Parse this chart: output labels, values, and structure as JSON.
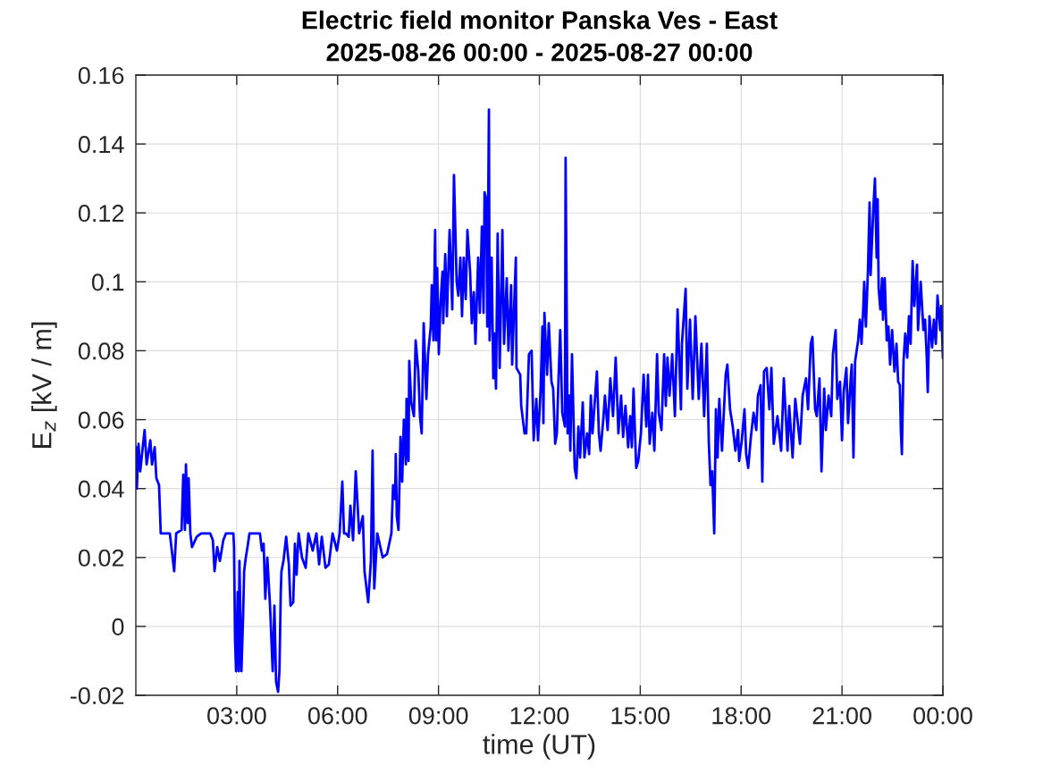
{
  "chart_data": {
    "type": "line",
    "title": "Electric field monitor Panska Ves - East",
    "subtitle": "2025-08-26 00:00 - 2025-08-27 00:00",
    "xlabel": "time (UT)",
    "ylabel": "E$_{z}$ [kV / m]",
    "x": [
      0.0,
      0.03,
      0.08,
      0.13,
      0.26,
      0.32,
      0.43,
      0.48,
      0.56,
      0.61,
      0.69,
      0.74,
      1.01,
      1.14,
      1.2,
      1.36,
      1.41,
      1.46,
      1.49,
      1.54,
      1.57,
      1.62,
      1.67,
      1.81,
      1.94,
      2.21,
      2.29,
      2.34,
      2.42,
      2.5,
      2.6,
      2.68,
      2.9,
      2.92,
      2.95,
      2.98,
      3.03,
      3.06,
      3.08,
      3.14,
      3.19,
      3.22,
      3.27,
      3.32,
      3.38,
      3.69,
      3.75,
      3.8,
      3.85,
      3.91,
      3.99,
      4.07,
      4.12,
      4.17,
      4.23,
      4.27,
      4.31,
      4.33,
      4.39,
      4.47,
      4.55,
      4.6,
      4.68,
      4.73,
      4.78,
      4.84,
      4.94,
      5.05,
      5.13,
      5.26,
      5.37,
      5.45,
      5.53,
      5.64,
      5.74,
      5.85,
      5.98,
      6.06,
      6.14,
      6.19,
      6.25,
      6.33,
      6.38,
      6.46,
      6.54,
      6.64,
      6.75,
      6.8,
      6.91,
      6.99,
      7.04,
      7.09,
      7.18,
      7.34,
      7.47,
      7.6,
      7.65,
      7.71,
      7.73,
      7.76,
      7.81,
      7.87,
      7.92,
      7.97,
      8.03,
      8.05,
      8.11,
      8.13,
      8.19,
      8.27,
      8.32,
      8.4,
      8.45,
      8.5,
      8.56,
      8.64,
      8.69,
      8.77,
      8.8,
      8.85,
      8.9,
      8.93,
      8.96,
      9.01,
      9.06,
      9.12,
      9.14,
      9.2,
      9.25,
      9.33,
      9.41,
      9.46,
      9.54,
      9.59,
      9.65,
      9.7,
      9.75,
      9.81,
      9.86,
      9.94,
      9.99,
      10.05,
      10.1,
      10.18,
      10.23,
      10.29,
      10.34,
      10.37,
      10.42,
      10.45,
      10.5,
      10.52,
      10.58,
      10.63,
      10.66,
      10.71,
      10.76,
      10.82,
      10.9,
      10.95,
      11.03,
      11.08,
      11.16,
      11.19,
      11.3,
      11.32,
      11.43,
      11.46,
      11.56,
      11.61,
      11.69,
      11.77,
      11.83,
      11.91,
      11.96,
      12.04,
      12.09,
      12.12,
      12.15,
      12.23,
      12.28,
      12.36,
      12.41,
      12.47,
      12.52,
      12.57,
      12.62,
      12.68,
      12.76,
      12.78,
      12.84,
      12.89,
      12.92,
      12.97,
      13.05,
      13.1,
      13.16,
      13.21,
      13.29,
      13.34,
      13.42,
      13.48,
      13.53,
      13.58,
      13.66,
      13.71,
      13.77,
      13.82,
      13.9,
      13.95,
      14.03,
      14.11,
      14.19,
      14.27,
      14.35,
      14.43,
      14.49,
      14.56,
      14.64,
      14.7,
      14.75,
      14.8,
      14.88,
      14.94,
      15.02,
      15.1,
      15.18,
      15.23,
      15.28,
      15.36,
      15.42,
      15.5,
      15.55,
      15.63,
      15.71,
      15.76,
      15.81,
      15.87,
      15.95,
      16.03,
      16.11,
      16.21,
      16.24,
      16.35,
      16.4,
      16.48,
      16.56,
      16.64,
      16.74,
      16.82,
      16.9,
      16.98,
      17.04,
      17.09,
      17.14,
      17.2,
      17.25,
      17.3,
      17.35,
      17.43,
      17.54,
      17.59,
      17.67,
      17.75,
      17.83,
      17.91,
      17.94,
      18.02,
      18.1,
      18.15,
      18.21,
      18.29,
      18.37,
      18.45,
      18.5,
      18.58,
      18.63,
      18.68,
      18.76,
      18.84,
      18.9,
      18.97,
      19.08,
      19.19,
      19.27,
      19.38,
      19.43,
      19.53,
      19.61,
      19.75,
      19.83,
      19.93,
      19.99,
      20.07,
      20.12,
      20.2,
      20.25,
      20.33,
      20.39,
      20.47,
      20.52,
      20.6,
      20.68,
      20.73,
      20.81,
      20.86,
      20.94,
      21.0,
      21.05,
      21.13,
      21.18,
      21.26,
      21.29,
      21.34,
      21.39,
      21.48,
      21.53,
      21.58,
      21.63,
      21.66,
      21.71,
      21.77,
      21.82,
      21.85,
      21.93,
      21.98,
      22.03,
      22.06,
      22.09,
      22.14,
      22.19,
      22.22,
      22.27,
      22.33,
      22.38,
      22.43,
      22.49,
      22.56,
      22.62,
      22.67,
      22.72,
      22.75,
      22.78,
      22.83,
      22.88,
      22.94,
      22.99,
      23.04,
      23.1,
      23.15,
      23.23,
      23.26,
      23.34,
      23.42,
      23.47,
      23.52,
      23.55,
      23.6,
      23.68,
      23.73,
      23.79,
      23.84,
      23.92,
      23.95,
      24.0
    ],
    "series": [
      {
        "color": "#0000ff",
        "values": [
          0.052,
          0.04,
          0.053,
          0.045,
          0.057,
          0.047,
          0.054,
          0.047,
          0.052,
          0.043,
          0.041,
          0.027,
          0.027,
          0.016,
          0.027,
          0.028,
          0.044,
          0.028,
          0.047,
          0.03,
          0.043,
          0.027,
          0.023,
          0.026,
          0.027,
          0.027,
          0.025,
          0.016,
          0.023,
          0.019,
          0.025,
          0.027,
          0.027,
          0.023,
          -0.004,
          -0.013,
          0.01,
          -0.013,
          0.019,
          -0.013,
          0.003,
          0.016,
          0.02,
          0.023,
          0.027,
          0.027,
          0.022,
          0.024,
          0.008,
          0.02,
          0.006,
          -0.013,
          0.006,
          -0.016,
          -0.019,
          -0.013,
          0.01,
          0.016,
          0.019,
          0.026,
          0.018,
          0.006,
          0.007,
          0.024,
          0.015,
          0.027,
          0.02,
          0.017,
          0.027,
          0.022,
          0.027,
          0.018,
          0.026,
          0.017,
          0.018,
          0.027,
          0.022,
          0.027,
          0.042,
          0.027,
          0.027,
          0.026,
          0.035,
          0.025,
          0.045,
          0.027,
          0.032,
          0.016,
          0.007,
          0.019,
          0.051,
          0.011,
          0.027,
          0.02,
          0.021,
          0.027,
          0.041,
          0.037,
          0.05,
          0.032,
          0.028,
          0.055,
          0.042,
          0.06,
          0.047,
          0.066,
          0.048,
          0.077,
          0.065,
          0.061,
          0.083,
          0.074,
          0.061,
          0.056,
          0.088,
          0.066,
          0.079,
          0.087,
          0.099,
          0.083,
          0.115,
          0.083,
          0.104,
          0.079,
          0.094,
          0.103,
          0.088,
          0.108,
          0.09,
          0.115,
          0.092,
          0.131,
          0.1,
          0.096,
          0.107,
          0.09,
          0.107,
          0.095,
          0.115,
          0.103,
          0.088,
          0.097,
          0.082,
          0.107,
          0.091,
          0.116,
          0.091,
          0.126,
          0.124,
          0.087,
          0.15,
          0.083,
          0.107,
          0.072,
          0.085,
          0.069,
          0.114,
          0.075,
          0.115,
          0.082,
          0.101,
          0.08,
          0.099,
          0.076,
          0.107,
          0.075,
          0.073,
          0.064,
          0.056,
          0.056,
          0.079,
          0.08,
          0.054,
          0.066,
          0.054,
          0.069,
          0.087,
          0.059,
          0.091,
          0.073,
          0.088,
          0.071,
          0.069,
          0.053,
          0.056,
          0.072,
          0.086,
          0.062,
          0.058,
          0.136,
          0.056,
          0.067,
          0.051,
          0.079,
          0.046,
          0.043,
          0.058,
          0.049,
          0.065,
          0.049,
          0.056,
          0.05,
          0.067,
          0.056,
          0.067,
          0.074,
          0.056,
          0.051,
          0.06,
          0.067,
          0.057,
          0.072,
          0.061,
          0.078,
          0.056,
          0.067,
          0.055,
          0.064,
          0.052,
          0.061,
          0.052,
          0.069,
          0.046,
          0.048,
          0.056,
          0.073,
          0.058,
          0.073,
          0.053,
          0.062,
          0.051,
          0.079,
          0.062,
          0.057,
          0.079,
          0.064,
          0.078,
          0.067,
          0.079,
          0.061,
          0.092,
          0.063,
          0.082,
          0.098,
          0.069,
          0.089,
          0.066,
          0.09,
          0.066,
          0.082,
          0.061,
          0.082,
          0.053,
          0.041,
          0.045,
          0.027,
          0.063,
          0.049,
          0.066,
          0.051,
          0.073,
          0.076,
          0.063,
          0.058,
          0.051,
          0.057,
          0.048,
          0.054,
          0.063,
          0.05,
          0.046,
          0.055,
          0.062,
          0.057,
          0.067,
          0.07,
          0.042,
          0.074,
          0.075,
          0.063,
          0.075,
          0.053,
          0.061,
          0.051,
          0.072,
          0.051,
          0.064,
          0.049,
          0.066,
          0.053,
          0.067,
          0.072,
          0.063,
          0.082,
          0.084,
          0.063,
          0.061,
          0.072,
          0.045,
          0.069,
          0.057,
          0.067,
          0.061,
          0.079,
          0.086,
          0.066,
          0.071,
          0.054,
          0.068,
          0.075,
          0.059,
          0.072,
          0.076,
          0.049,
          0.077,
          0.083,
          0.089,
          0.082,
          0.092,
          0.1,
          0.087,
          0.103,
          0.123,
          0.102,
          0.121,
          0.13,
          0.107,
          0.124,
          0.098,
          0.092,
          0.101,
          0.089,
          0.101,
          0.083,
          0.087,
          0.076,
          0.086,
          0.074,
          0.082,
          0.071,
          0.07,
          0.057,
          0.05,
          0.077,
          0.085,
          0.078,
          0.09,
          0.082,
          0.106,
          0.093,
          0.105,
          0.086,
          0.1,
          0.086,
          0.089,
          0.078,
          0.068,
          0.09,
          0.081,
          0.089,
          0.082,
          0.096,
          0.086,
          0.093,
          0.078
        ]
      }
    ],
    "xlim": [
      0,
      24
    ],
    "xticks": [
      {
        "value": 3,
        "label": "03:00"
      },
      {
        "value": 6,
        "label": "06:00"
      },
      {
        "value": 9,
        "label": "09:00"
      },
      {
        "value": 12,
        "label": "12:00"
      },
      {
        "value": 15,
        "label": "15:00"
      },
      {
        "value": 18,
        "label": "18:00"
      },
      {
        "value": 21,
        "label": "21:00"
      },
      {
        "value": 24,
        "label": "00:00"
      }
    ],
    "ylim": [
      -0.02,
      0.16
    ],
    "yticks": [
      -0.02,
      0,
      0.02,
      0.04,
      0.06,
      0.08,
      0.1,
      0.12,
      0.14,
      0.16
    ],
    "grid": true
  }
}
